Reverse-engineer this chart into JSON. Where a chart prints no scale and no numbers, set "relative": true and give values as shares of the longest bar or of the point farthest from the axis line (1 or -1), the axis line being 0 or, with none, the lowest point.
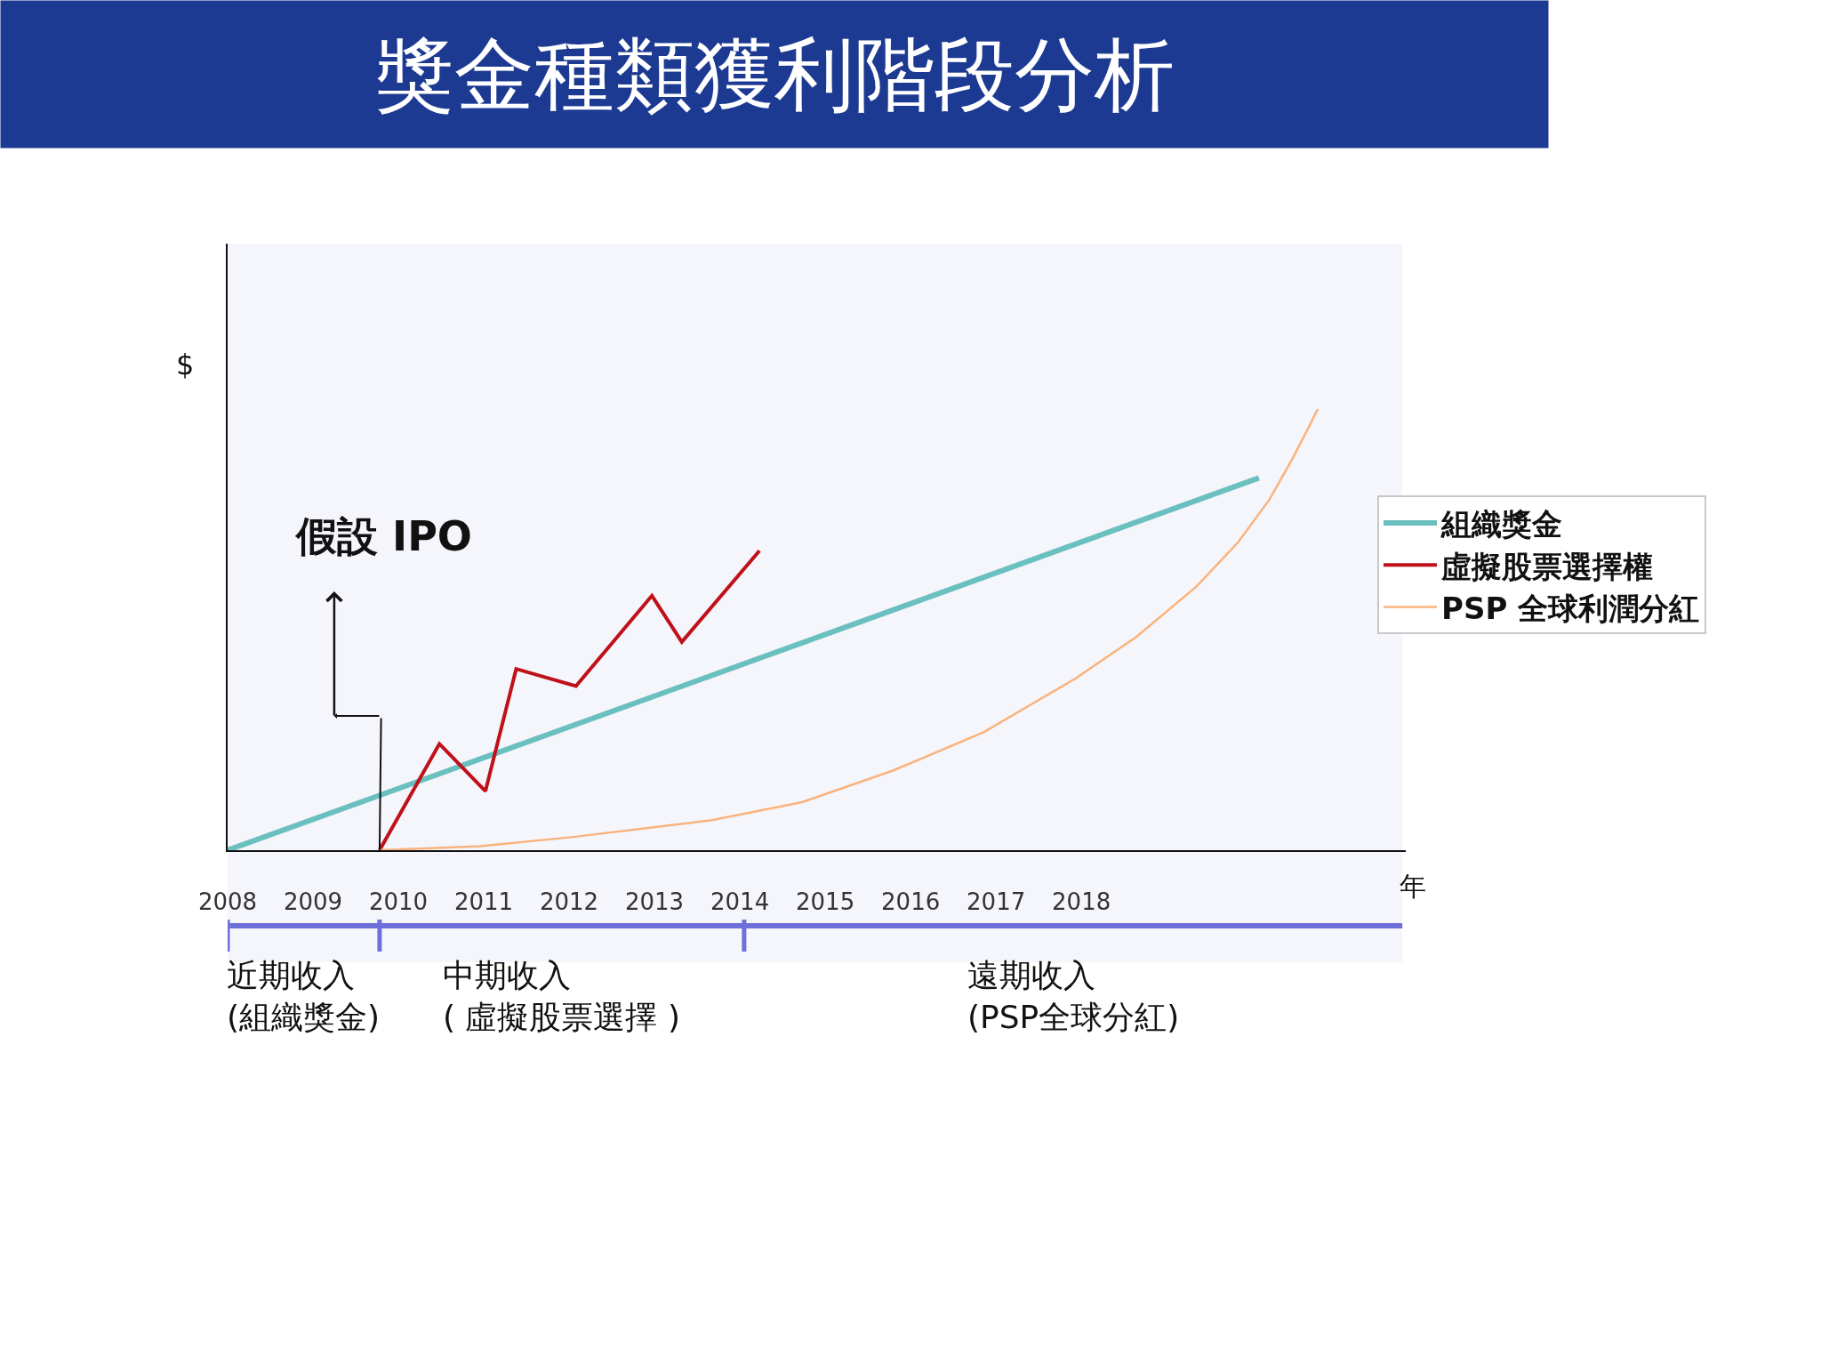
{
  "chart_data": {
    "type": "line",
    "title": "獎金種類獲利階段分析",
    "xlabel": "年",
    "ylabel": "$",
    "relative": true,
    "xlim": [
      2008,
      2021.8
    ],
    "xticks": [
      2008,
      2009,
      2010,
      2011,
      2012,
      2013,
      2014,
      2015,
      2016,
      2017,
      2018
    ],
    "series": [
      {
        "name": "組織獎金",
        "color": "#6abfbf",
        "x": [
          2008,
          2020.08
        ],
        "values": [
          0,
          0.844
        ]
      },
      {
        "name": "虛擬股票選擇權",
        "color": "#c0111a",
        "x": [
          2009.78,
          2010.48,
          2011.02,
          2011.38,
          2012.08,
          2012.97,
          2013.32,
          2014.23
        ],
        "values": [
          0,
          0.241,
          0.134,
          0.411,
          0.372,
          0.577,
          0.472,
          0.679
        ]
      },
      {
        "name": "PSP 全球利潤分紅",
        "color": "#f9b37c",
        "x": [
          2009.78,
          2010.96,
          2012.05,
          2013.16,
          2013.67,
          2014.73,
          2015.8,
          2016.86,
          2017.93,
          2018.64,
          2019.35,
          2019.84,
          2020.2,
          2020.48,
          2020.66,
          2020.77
        ],
        "values": [
          0,
          0.009,
          0.03,
          0.056,
          0.068,
          0.109,
          0.181,
          0.268,
          0.389,
          0.483,
          0.598,
          0.699,
          0.794,
          0.89,
          0.958,
          1.0
        ]
      }
    ],
    "annotations": [
      {
        "text": "假設 IPO",
        "x": 2009.78,
        "y": 0
      }
    ],
    "bands": [
      {
        "axis": "x",
        "from": 2008,
        "to": 2009.78,
        "label": "近期收入\n(組織獎金)",
        "color": "#6f6fd9"
      },
      {
        "axis": "x",
        "from": 2009.78,
        "to": 2014.05,
        "label": "中期收入\n( 虛擬股票選擇 )",
        "color": "#6f6fd9"
      },
      {
        "axis": "x",
        "from": 2014.05,
        "to": 2021.76,
        "label": "遠期收入\n(PSP全球分紅)",
        "color": "#6f6fd9"
      }
    ],
    "legend": "right",
    "grid": false,
    "marker": "none",
    "line_style": "solid"
  }
}
